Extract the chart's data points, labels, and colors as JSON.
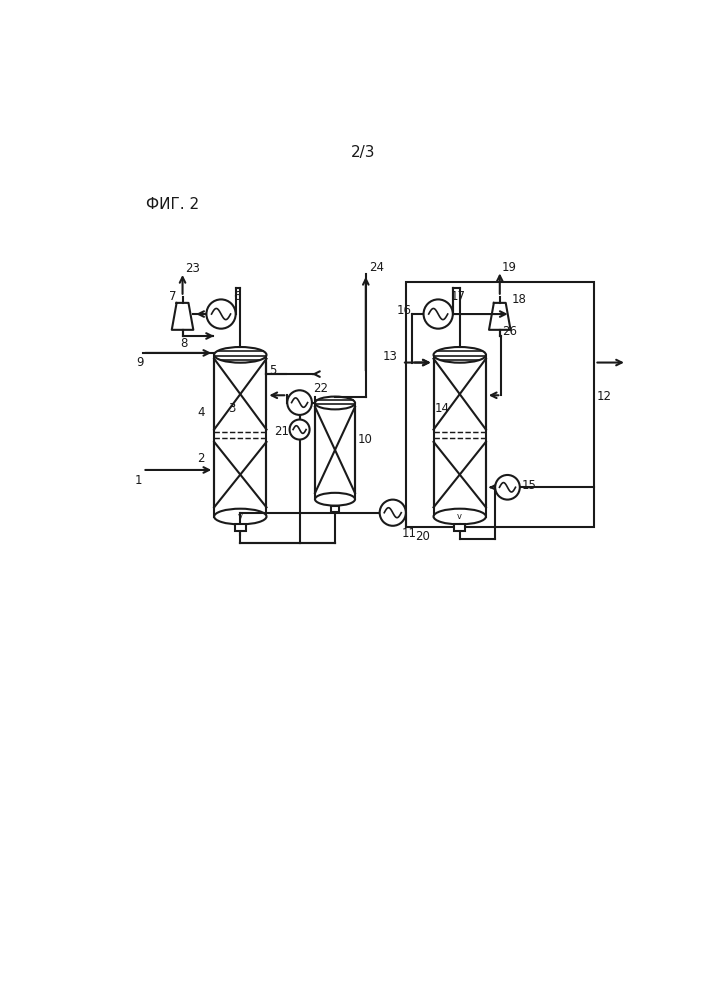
{
  "title_page": "2/3",
  "fig_label": "ФИГ. 2",
  "bg_color": "#ffffff",
  "line_color": "#1a1a1a",
  "figsize": [
    7.07,
    10.0
  ],
  "dpi": 100
}
